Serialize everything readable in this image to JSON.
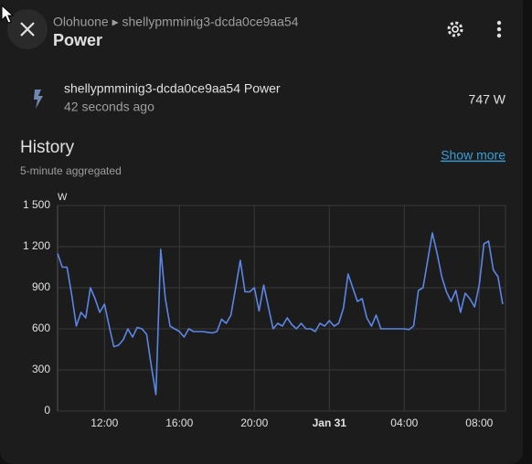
{
  "header": {
    "breadcrumb": "Olohuone ▸ shellypmminig3-dcda0ce9aa54",
    "title": "Power"
  },
  "entity": {
    "name": "shellypmminig3-dcda0ce9aa54 Power",
    "updated": "42 seconds ago",
    "state": "747 W"
  },
  "history": {
    "title": "History",
    "subtitle": "5-minute aggregated",
    "link": "Show more"
  },
  "chart_data": {
    "type": "line",
    "y_label": "W",
    "color": "#5b86e5",
    "grid": true,
    "x": [
      9.5,
      9.75,
      10,
      10.25,
      10.5,
      10.75,
      11,
      11.25,
      11.5,
      11.75,
      12,
      12.25,
      12.5,
      12.75,
      13,
      13.25,
      13.5,
      13.75,
      14,
      14.25,
      14.5,
      14.75,
      15,
      15.25,
      15.5,
      15.75,
      16,
      16.25,
      16.5,
      16.75,
      17,
      17.25,
      17.5,
      17.75,
      18,
      18.25,
      18.5,
      18.75,
      19,
      19.25,
      19.5,
      19.75,
      20,
      20.25,
      20.5,
      20.75,
      21,
      21.25,
      21.5,
      21.75,
      22,
      22.25,
      22.5,
      22.75,
      23,
      23.25,
      23.5,
      23.75,
      24,
      24.25,
      24.5,
      24.75,
      25,
      25.25,
      25.5,
      25.75,
      26,
      26.25,
      26.5,
      26.75,
      27,
      27.25,
      27.5,
      27.75,
      28,
      28.25,
      28.5,
      28.75,
      29,
      29.25,
      29.5,
      29.75,
      30,
      30.25,
      30.5,
      30.75,
      31,
      31.25,
      31.5,
      31.75,
      32,
      32.25,
      32.5,
      32.75,
      33,
      33.25
    ],
    "values": [
      1150,
      1050,
      1050,
      850,
      620,
      720,
      680,
      900,
      820,
      720,
      780,
      620,
      470,
      480,
      520,
      600,
      540,
      610,
      600,
      560,
      330,
      120,
      1180,
      820,
      620,
      600,
      580,
      540,
      600,
      580,
      580,
      580,
      575,
      570,
      580,
      670,
      640,
      700,
      900,
      1100,
      870,
      870,
      900,
      730,
      920,
      760,
      600,
      640,
      620,
      680,
      630,
      600,
      640,
      600,
      600,
      580,
      640,
      620,
      660,
      620,
      640,
      750,
      1000,
      900,
      800,
      820,
      680,
      620,
      700,
      600,
      600,
      600,
      600,
      600,
      600,
      595,
      620,
      880,
      900,
      1100,
      1300,
      1150,
      980,
      870,
      800,
      880,
      720,
      860,
      820,
      760,
      920,
      1220,
      1240,
      1030,
      980,
      780
    ],
    "xlim": [
      9.5,
      33.4
    ],
    "xticks": [
      {
        "value": 12,
        "label": "12:00"
      },
      {
        "value": 16,
        "label": "16:00"
      },
      {
        "value": 20,
        "label": "20:00"
      },
      {
        "value": 24,
        "label": "Jan 31"
      },
      {
        "value": 28,
        "label": "04:00"
      },
      {
        "value": 32,
        "label": "08:00"
      }
    ],
    "ylim": [
      0,
      1500
    ],
    "yticks": [
      0,
      300,
      600,
      900,
      {
        "value": 1200,
        "label": "1 200"
      },
      {
        "value": 1500,
        "label": "1 500"
      }
    ]
  }
}
